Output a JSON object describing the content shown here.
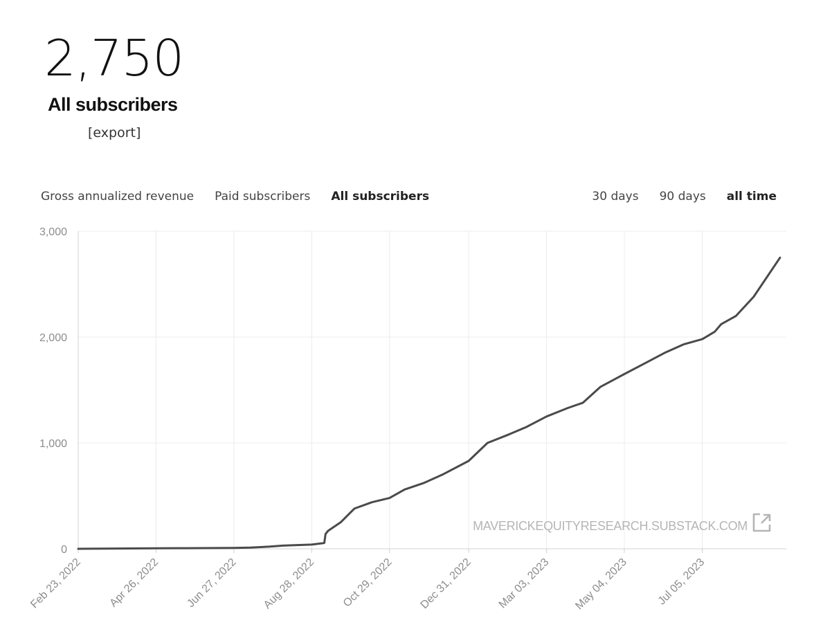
{
  "headline": {
    "value": "2,750",
    "label": "All subscribers",
    "export_label": "[export]"
  },
  "metric_tabs": [
    {
      "label": "Gross annualized revenue",
      "active": false
    },
    {
      "label": "Paid subscribers",
      "active": false
    },
    {
      "label": "All subscribers",
      "active": true
    }
  ],
  "range_tabs": [
    {
      "label": "30 days",
      "active": false
    },
    {
      "label": "90 days",
      "active": false
    },
    {
      "label": "all time",
      "active": true
    }
  ],
  "watermark": {
    "text": "MAVERICKEQUITYRESEARCH.SUBSTACK.COM",
    "icon": "external-link-icon"
  },
  "colors": {
    "line": "#4a4a4a",
    "grid": "#ececec",
    "axis": "#d0d0d0"
  },
  "chart_data": {
    "type": "line",
    "title": "",
    "xlabel": "",
    "ylabel": "",
    "ylim": [
      0,
      3000
    ],
    "y_ticks": [
      0,
      1000,
      2000,
      3000
    ],
    "y_tick_labels": [
      "0",
      "1,000",
      "2,000",
      "3,000"
    ],
    "x_ticks": [
      "Feb 23, 2022",
      "Apr 26, 2022",
      "Jun 27, 2022",
      "Aug 28, 2022",
      "Oct 29, 2022",
      "Dec 31, 2022",
      "Mar 03, 2023",
      "May 04, 2023",
      "Jul 05, 2023"
    ],
    "grid": true,
    "series": [
      {
        "name": "All subscribers",
        "x": [
          "2022-02-23",
          "2022-03-15",
          "2022-04-26",
          "2022-05-20",
          "2022-06-27",
          "2022-07-10",
          "2022-07-25",
          "2022-08-05",
          "2022-08-28",
          "2022-09-07",
          "2022-09-08",
          "2022-09-10",
          "2022-09-20",
          "2022-10-01",
          "2022-10-15",
          "2022-10-29",
          "2022-11-10",
          "2022-11-25",
          "2022-12-10",
          "2022-12-31",
          "2023-01-15",
          "2023-02-01",
          "2023-02-15",
          "2023-03-03",
          "2023-03-20",
          "2023-04-01",
          "2023-04-15",
          "2023-05-04",
          "2023-05-20",
          "2023-06-05",
          "2023-06-20",
          "2023-07-05",
          "2023-07-15",
          "2023-07-20",
          "2023-08-01",
          "2023-08-15",
          "2023-09-05"
        ],
        "y": [
          0,
          2,
          5,
          6,
          8,
          12,
          20,
          30,
          40,
          55,
          140,
          170,
          250,
          380,
          440,
          480,
          560,
          620,
          700,
          830,
          1000,
          1080,
          1150,
          1250,
          1330,
          1380,
          1530,
          1650,
          1750,
          1850,
          1930,
          1980,
          2050,
          2120,
          2200,
          2380,
          2750
        ]
      }
    ]
  }
}
